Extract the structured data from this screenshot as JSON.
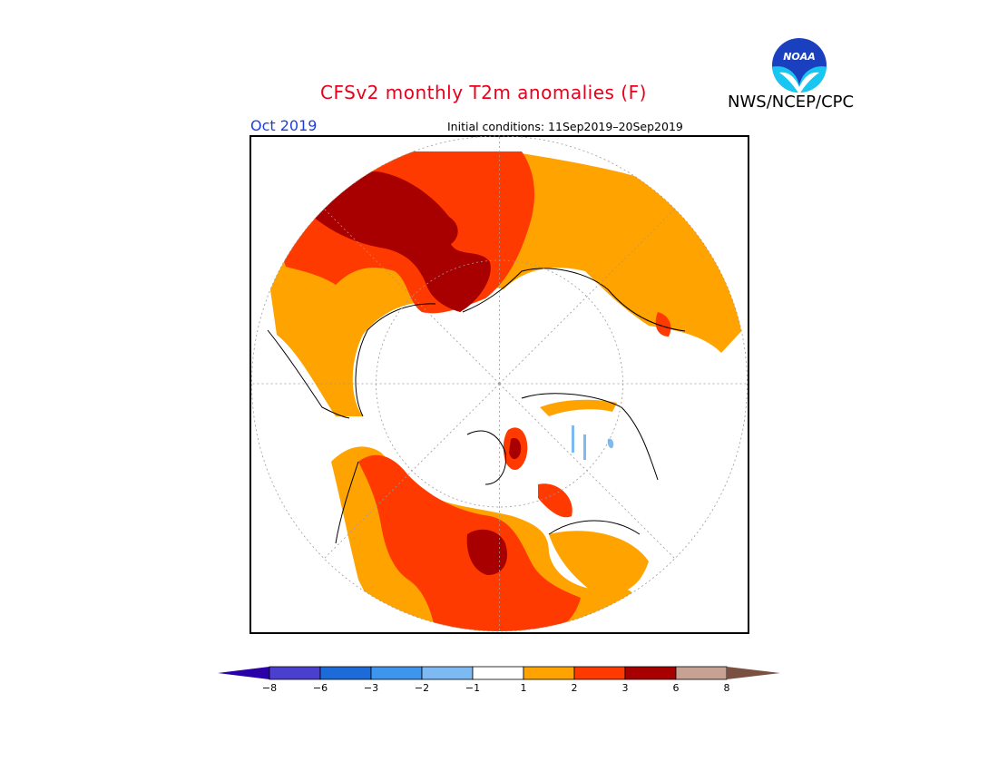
{
  "header": {
    "title": "CFSv2 monthly T2m anomalies (F)",
    "agency": "NWS/NCEP/CPC",
    "valid_month": "Oct 2019",
    "initial_conditions": "Initial conditions: 11Sep2019–20Sep2019"
  },
  "logo": {
    "text": "NOAA",
    "icon": "noaa-logo-icon"
  },
  "colorbar": {
    "below_color": "#2a00a8",
    "above_color": "#7a5040",
    "bins": [
      {
        "color": "#4b3fd0"
      },
      {
        "color": "#1c6bd8"
      },
      {
        "color": "#3d95ee"
      },
      {
        "color": "#7db9f3"
      },
      {
        "color": "#ffffff"
      },
      {
        "color": "#ffa300"
      },
      {
        "color": "#ff3a00"
      },
      {
        "color": "#a80000"
      },
      {
        "color": "#c7a293"
      }
    ],
    "ticks": [
      "−8",
      "−6",
      "−3",
      "−2",
      "−1",
      "1",
      "2",
      "3",
      "6",
      "8"
    ]
  },
  "map_colors": {
    "above_1_2": "#ffa300",
    "above_2_3": "#ff3a00",
    "above_3_6": "#a80000",
    "below_1_2": "#7db9f3",
    "neutral": "#ffffff",
    "coastline": "#000000",
    "grid": "#9a9a9a"
  }
}
